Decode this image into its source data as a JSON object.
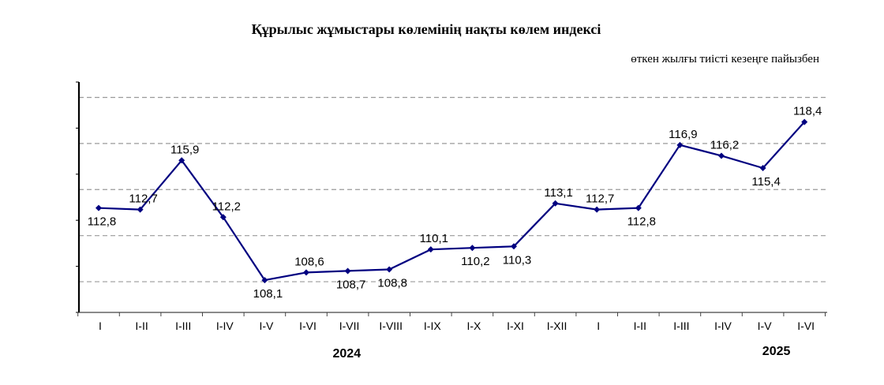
{
  "chart_data": {
    "type": "line",
    "title": "Құрылыс жұмыстары көлемінің нақты көлем индексі",
    "subtitle": "өткен жылғы тиісті кезеңге пайызбен",
    "categories": [
      "I",
      "I-II",
      "I-III",
      "I-IV",
      "I-V",
      "I-VI",
      "I-VII",
      "I-VIII",
      "I-IX",
      "I-X",
      "I-XI",
      "I-XII",
      "I",
      "I-II",
      "I-III",
      "I-IV",
      "I-V",
      "I-VI"
    ],
    "series": [
      {
        "values": [
          112.8,
          112.7,
          115.9,
          112.2,
          108.1,
          108.6,
          108.7,
          108.8,
          110.1,
          110.2,
          110.3,
          113.1,
          112.7,
          112.8,
          116.9,
          116.2,
          115.4,
          118.4
        ],
        "labels": [
          "112,8",
          "112,7",
          "115,9",
          "112,2",
          "108,1",
          "108,6",
          "108,7",
          "108,8",
          "110,1",
          "110,2",
          "110,3",
          "113,1",
          "112,7",
          "112,8",
          "116,9",
          "116,2",
          "115,4",
          "118,4"
        ],
        "color": "#000080"
      }
    ],
    "year_labels": [
      "2024",
      "2025"
    ],
    "ylim": [
      106,
      121
    ],
    "grid": true,
    "gridlines": [
      108,
      111,
      114,
      117,
      120
    ],
    "label_positions": [
      "below",
      "above",
      "above",
      "above",
      "below",
      "above",
      "below",
      "below",
      "above",
      "below",
      "below",
      "above",
      "above",
      "below",
      "above",
      "above",
      "below",
      "above"
    ]
  }
}
